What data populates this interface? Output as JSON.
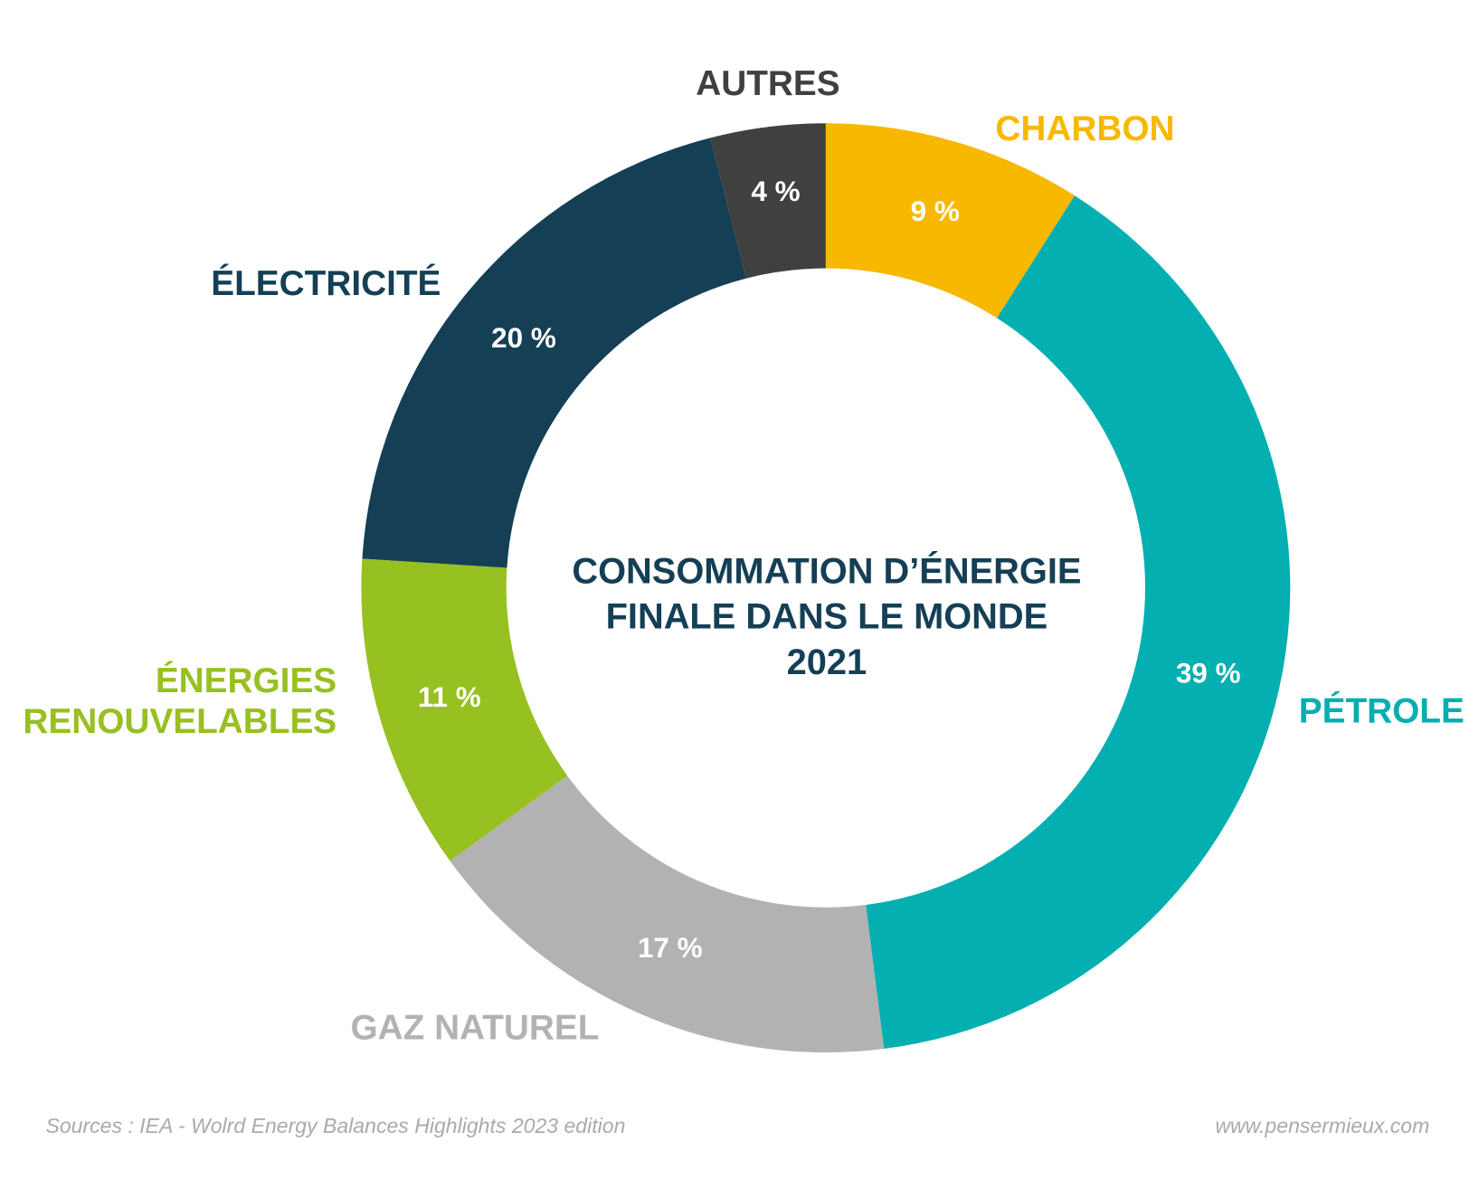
{
  "chart_data": {
    "type": "pie",
    "donut": true,
    "title_lines": [
      "CONSOMMATION D’ÉNERGIE",
      "FINALE DANS LE MONDE",
      "2021"
    ],
    "unit": "%",
    "slices": [
      {
        "label": "CHARBON",
        "value": 9,
        "value_label": "9 %",
        "color": "#F9B800"
      },
      {
        "label": "PÉTROLE",
        "value": 39,
        "value_label": "39 %",
        "color": "#03AFB0"
      },
      {
        "label": "GAZ NATUREL",
        "value": 17,
        "value_label": "17 %",
        "color": "#B3B2B3"
      },
      {
        "label_lines": [
          "ÉNERGIES",
          "RENOUVELABLES"
        ],
        "value": 11,
        "value_label": "11 %",
        "color": "#97C021"
      },
      {
        "label": "ÉLECTRICITÉ",
        "value": 20,
        "value_label": "20 %",
        "color": "#143F55"
      },
      {
        "label": "AUTRES",
        "value": 4,
        "value_label": "4 %",
        "color": "#404040"
      }
    ],
    "order": "clockwise from top",
    "legend": "none (direct labels)"
  },
  "footer": {
    "source": "Sources : IEA - Wolrd Energy Balances Highlights 2023 edition",
    "website": "www.pensermieux.com"
  }
}
